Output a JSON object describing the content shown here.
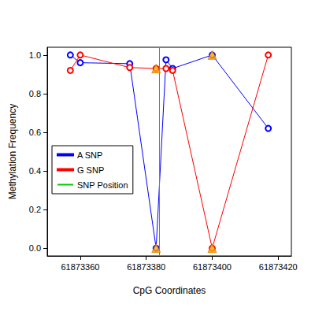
{
  "chart_data": {
    "type": "line",
    "x_label": "CpG Coordinates",
    "y_label": "Methylation Frequency",
    "x": [
      61873357,
      61873360,
      61873375,
      61873383,
      61873386,
      61873388,
      61873400,
      61873417
    ],
    "series": [
      {
        "name": "A SNP",
        "color": "#0000ff",
        "marker": "circle",
        "values": [
          1.0,
          0.96,
          0.955,
          0.0,
          0.975,
          0.93,
          1.0,
          0.62
        ]
      },
      {
        "name": "G SNP",
        "color": "#ff0000",
        "marker": "circle",
        "values": [
          0.92,
          1.0,
          0.935,
          0.93,
          0.93,
          0.92,
          0.0,
          1.0
        ]
      },
      {
        "type": "scatter",
        "color": "#ffa500",
        "marker": "triangle",
        "values": [
          null,
          null,
          null,
          0.0,
          null,
          null,
          1.0,
          null
        ]
      },
      {
        "type": "scatter",
        "color": "#ffa500",
        "marker": "triangle",
        "values": [
          null,
          null,
          null,
          0.93,
          null,
          null,
          0.0,
          null
        ]
      },
      {
        "name": "SNP Position",
        "type": "vline",
        "color": "#00cc00",
        "x": 61873384
      }
    ],
    "xlim": [
      61873350,
      61873424
    ],
    "xticks": [
      61873360,
      61873380,
      61873400,
      61873420
    ],
    "ylim": [
      -0.04,
      1.04
    ],
    "yticks": [
      {
        "value": 0,
        "label": "0.0"
      },
      {
        "value": 0.2,
        "label": "0.2"
      },
      {
        "value": 0.4,
        "label": "0.4"
      },
      {
        "value": 0.6,
        "label": "0.6"
      },
      {
        "value": 0.8,
        "label": "0.8"
      },
      {
        "value": 1,
        "label": "1.0"
      }
    ],
    "legend": "left",
    "grid": false
  }
}
